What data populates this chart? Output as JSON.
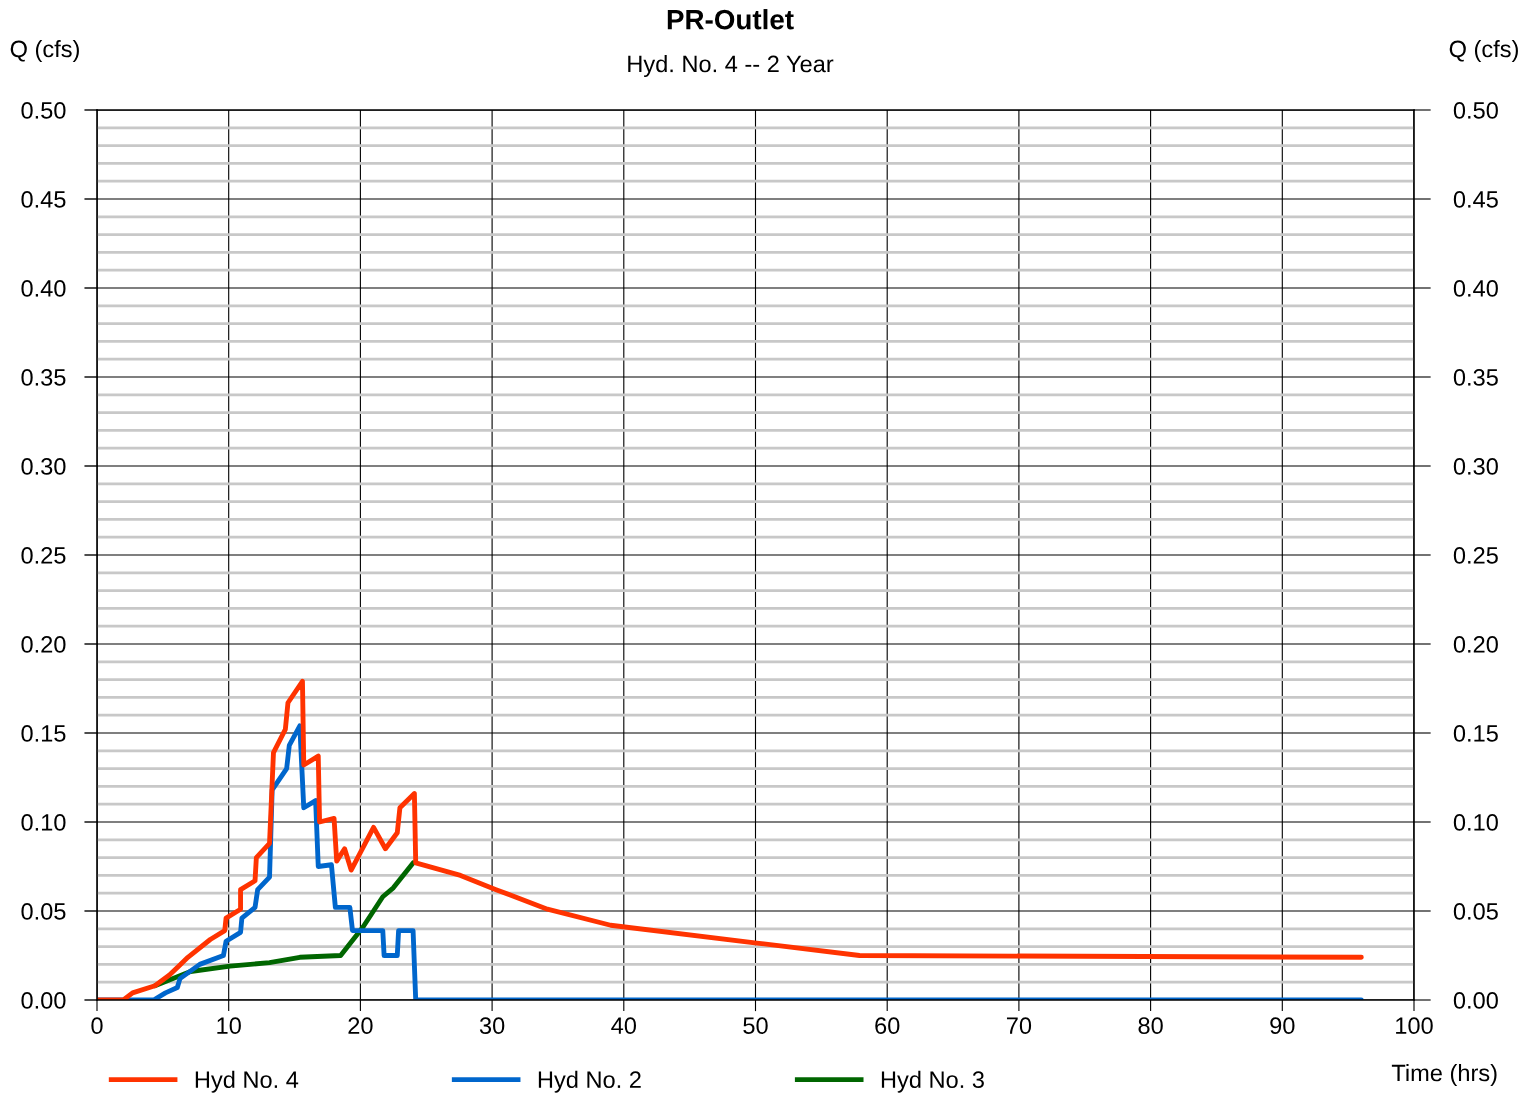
{
  "chart_data": {
    "type": "line",
    "title": "PR-Outlet",
    "subtitle": "Hyd. No. 4 -- 2 Year",
    "xlabel": "Time (hrs)",
    "ylabel": "Q (cfs)",
    "y2label": "Q (cfs)",
    "xlim": [
      0,
      100
    ],
    "xticks": [
      0,
      10,
      20,
      30,
      40,
      50,
      60,
      70,
      80,
      90,
      100
    ],
    "ylim": [
      0,
      0.5
    ],
    "yticks": [
      {
        "value": 0,
        "label": "0.00"
      },
      {
        "value": 0.01,
        "label": null
      },
      {
        "value": 0.02,
        "label": null
      },
      {
        "value": 0.03,
        "label": null
      },
      {
        "value": 0.04,
        "label": null
      },
      {
        "value": 0.05,
        "label": "0.05"
      },
      {
        "value": 0.06,
        "label": null
      },
      {
        "value": 0.07,
        "label": null
      },
      {
        "value": 0.08,
        "label": null
      },
      {
        "value": 0.09,
        "label": null
      },
      {
        "value": 0.1,
        "label": "0.10"
      },
      {
        "value": 0.11,
        "label": null
      },
      {
        "value": 0.12,
        "label": null
      },
      {
        "value": 0.13,
        "label": null
      },
      {
        "value": 0.14,
        "label": null
      },
      {
        "value": 0.15,
        "label": "0.15"
      },
      {
        "value": 0.16,
        "label": null
      },
      {
        "value": 0.17,
        "label": null
      },
      {
        "value": 0.18,
        "label": null
      },
      {
        "value": 0.19,
        "label": null
      },
      {
        "value": 0.2,
        "label": "0.20"
      },
      {
        "value": 0.21,
        "label": null
      },
      {
        "value": 0.22,
        "label": null
      },
      {
        "value": 0.23,
        "label": null
      },
      {
        "value": 0.24,
        "label": null
      },
      {
        "value": 0.25,
        "label": "0.25"
      },
      {
        "value": 0.26,
        "label": null
      },
      {
        "value": 0.27,
        "label": null
      },
      {
        "value": 0.28,
        "label": null
      },
      {
        "value": 0.29,
        "label": null
      },
      {
        "value": 0.3,
        "label": "0.30"
      },
      {
        "value": 0.31,
        "label": null
      },
      {
        "value": 0.32,
        "label": null
      },
      {
        "value": 0.33,
        "label": null
      },
      {
        "value": 0.34,
        "label": null
      },
      {
        "value": 0.35,
        "label": "0.35"
      },
      {
        "value": 0.36,
        "label": null
      },
      {
        "value": 0.37,
        "label": null
      },
      {
        "value": 0.38,
        "label": null
      },
      {
        "value": 0.39,
        "label": null
      },
      {
        "value": 0.4,
        "label": "0.40"
      },
      {
        "value": 0.41,
        "label": null
      },
      {
        "value": 0.42,
        "label": null
      },
      {
        "value": 0.43,
        "label": null
      },
      {
        "value": 0.44,
        "label": null
      },
      {
        "value": 0.45,
        "label": "0.45"
      },
      {
        "value": 0.46,
        "label": null
      },
      {
        "value": 0.47,
        "label": null
      },
      {
        "value": 0.48,
        "label": null
      },
      {
        "value": 0.49,
        "label": null
      },
      {
        "value": 0.5,
        "label": "0.50"
      }
    ],
    "y2lim": [
      0,
      0.5
    ],
    "y2ticks": [
      {
        "value": 0,
        "label": "0.00"
      },
      {
        "value": 0.05,
        "label": "0.05"
      },
      {
        "value": 0.1,
        "label": "0.10"
      },
      {
        "value": 0.15,
        "label": "0.15"
      },
      {
        "value": 0.2,
        "label": "0.20"
      },
      {
        "value": 0.25,
        "label": "0.25"
      },
      {
        "value": 0.3,
        "label": "0.30"
      },
      {
        "value": 0.35,
        "label": "0.35"
      },
      {
        "value": 0.4,
        "label": "0.40"
      },
      {
        "value": 0.45,
        "label": "0.45"
      },
      {
        "value": 0.5,
        "label": "0.50"
      }
    ],
    "grid": true,
    "legend": "bottom left",
    "marker": "none",
    "line_style": "solid",
    "series": [
      {
        "name": "Hyd No. 4",
        "color": "#ff3300",
        "x": [
          0,
          2.0,
          2.7,
          4.4,
          5.5,
          6.2,
          6.9,
          8.6,
          9.7,
          9.8,
          10.9,
          10.9,
          12.0,
          12.1,
          13.1,
          13.4,
          14.3,
          14.5,
          15.6,
          15.7,
          16.8,
          16.9,
          18.0,
          18.2,
          18.8,
          19.3,
          21.0,
          21.9,
          22.8,
          23.0,
          24.1,
          24.2,
          27.6,
          30.3,
          34.2,
          39.0,
          50.1,
          57.9,
          96.0
        ],
        "values": [
          0,
          0,
          0.004,
          0.008,
          0.014,
          0.019,
          0.024,
          0.034,
          0.039,
          0.046,
          0.051,
          0.062,
          0.067,
          0.08,
          0.088,
          0.139,
          0.152,
          0.167,
          0.179,
          0.132,
          0.137,
          0.1,
          0.102,
          0.078,
          0.085,
          0.073,
          0.097,
          0.085,
          0.094,
          0.108,
          0.116,
          0.077,
          0.07,
          0.062,
          0.051,
          0.042,
          0.032,
          0.025,
          0.024
        ]
      },
      {
        "name": "Hyd No. 2",
        "color": "#0066cc",
        "x": [
          0,
          4.3,
          5.2,
          6.1,
          6.3,
          7.8,
          9.6,
          9.8,
          10.9,
          11.0,
          12.0,
          12.2,
          13.1,
          13.3,
          14.4,
          14.6,
          15.4,
          15.7,
          16.6,
          16.8,
          17.8,
          18.1,
          19.2,
          19.4,
          21.7,
          21.8,
          22.8,
          22.9,
          24.0,
          24.2,
          96.0
        ],
        "values": [
          0,
          0,
          0.004,
          0.007,
          0.012,
          0.02,
          0.025,
          0.033,
          0.038,
          0.046,
          0.052,
          0.062,
          0.069,
          0.118,
          0.13,
          0.143,
          0.154,
          0.108,
          0.112,
          0.075,
          0.076,
          0.052,
          0.052,
          0.039,
          0.039,
          0.025,
          0.025,
          0.039,
          0.039,
          0,
          0
        ]
      },
      {
        "name": "Hyd No. 3",
        "color": "#006600",
        "x": [
          4.4,
          7.1,
          10.1,
          13.1,
          15.4,
          18.5,
          20.2,
          21.7,
          22.5,
          24.0
        ],
        "values": [
          0.008,
          0.016,
          0.019,
          0.021,
          0.024,
          0.025,
          0.041,
          0.058,
          0.063,
          0.077
        ]
      }
    ]
  }
}
